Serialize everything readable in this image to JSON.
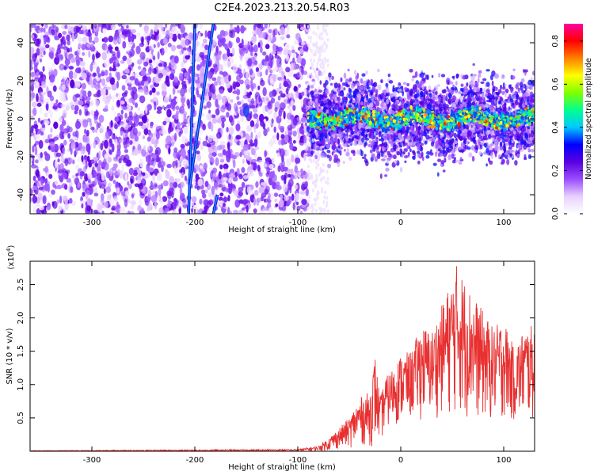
{
  "title": "C2E4.2023.213.20.54.R03",
  "chart_data": [
    {
      "type": "heatmap",
      "xlabel": "Height of straight line (km)",
      "ylabel": "Frequency (Hz)",
      "xlim": [
        -360,
        130
      ],
      "ylim": [
        -50,
        50
      ],
      "xticks": [
        -300,
        -200,
        -100,
        0,
        100
      ],
      "yticks": [
        -40,
        -20,
        0,
        20,
        40
      ],
      "colorbar": {
        "label": "Normalized spectral amplitude",
        "range": [
          0,
          0.88
        ],
        "ticks": [
          0.0,
          0.2,
          0.4,
          0.6,
          0.8
        ],
        "colormap": [
          "#ffffff",
          "#e8d0ff",
          "#9a4dff",
          "#5a00e0",
          "#0000ff",
          "#00c8ff",
          "#00ff90",
          "#80ff00",
          "#ffff00",
          "#ff8000",
          "#ff0000",
          "#ff00a0"
        ]
      },
      "features": {
        "noise_region_x": [
          -360,
          -90
        ],
        "signal_band_x": [
          -90,
          130
        ],
        "signal_band_center_hz": 0,
        "signal_band_halfwidth_hz": 10,
        "streaks": [
          {
            "x": [
              -206,
              -200
            ],
            "y": [
              -50,
              50
            ]
          },
          {
            "x": [
              -205,
              -182
            ],
            "y": [
              -36,
              50
            ]
          },
          {
            "x": [
              -182,
              -178
            ],
            "y": [
              -50,
              -40
            ]
          }
        ],
        "blob": {
          "x": -150,
          "y": 4
        }
      }
    },
    {
      "type": "line",
      "xlabel": "Height of straight line (km)",
      "ylabel": "SNR (10 * v/v)",
      "y_multiplier": "(x10",
      "y_multiplier_exp": "4",
      "xlim": [
        -360,
        130
      ],
      "ylim": [
        0,
        2.85
      ],
      "xticks": [
        -300,
        -200,
        -100,
        0,
        100
      ],
      "yticks": [
        0.5,
        1.0,
        1.5,
        2.0,
        2.5
      ],
      "color": "#e83030",
      "envelope": {
        "x": [
          -360,
          -100,
          -80,
          -70,
          -50,
          -40,
          -30,
          -25,
          -20,
          -15,
          -10,
          0,
          10,
          20,
          30,
          40,
          50,
          55,
          60,
          70,
          80,
          90,
          100,
          110,
          120,
          130
        ],
        "upper": [
          0.01,
          0.03,
          0.08,
          0.2,
          0.5,
          0.8,
          0.9,
          1.45,
          0.8,
          1.1,
          1.2,
          1.45,
          1.5,
          1.9,
          1.8,
          2.2,
          2.6,
          2.85,
          2.65,
          2.35,
          2.1,
          1.85,
          2.0,
          1.55,
          1.85,
          1.9
        ],
        "lower": [
          0.0,
          0.0,
          0.0,
          0.0,
          0.05,
          0.08,
          0.05,
          0.1,
          0.1,
          0.3,
          0.35,
          0.4,
          0.45,
          0.45,
          0.5,
          0.5,
          0.5,
          0.5,
          0.45,
          0.45,
          0.4,
          0.4,
          0.45,
          0.4,
          0.4,
          0.4
        ]
      }
    }
  ]
}
